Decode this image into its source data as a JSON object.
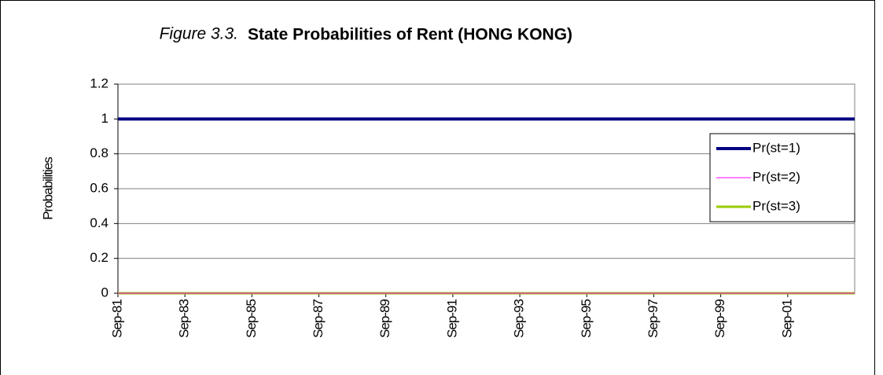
{
  "chart_data": {
    "type": "line",
    "figure_label": "Figure 3.3.",
    "title": "State Probabilities of Rent (HONG KONG)",
    "y_label": "Probabilities",
    "categories": [
      "Sep-81",
      null,
      "Sep-83",
      null,
      "Sep-85",
      null,
      "Sep-87",
      null,
      "Sep-89",
      null,
      "Sep-91",
      null,
      "Sep-93",
      null,
      "Sep-95",
      null,
      "Sep-97",
      null,
      "Sep-99",
      null,
      "Sep-01",
      null,
      null
    ],
    "series": [
      {
        "name": "Pr(st=1)",
        "color": "#000080",
        "width": 4,
        "values": [
          1,
          1,
          1,
          1,
          1,
          1,
          1,
          1,
          1,
          1,
          1,
          1,
          1,
          1,
          1,
          1,
          1,
          1,
          1,
          1,
          1,
          1,
          1
        ]
      },
      {
        "name": "Pr(st=2)",
        "color": "#ff00ff",
        "width": 1,
        "values": [
          0,
          0,
          0,
          0,
          0,
          0,
          0,
          0,
          0,
          0,
          0,
          0,
          0,
          0,
          0,
          0,
          0,
          0,
          0,
          0,
          0,
          0,
          0
        ]
      },
      {
        "name": "Pr(st=3)",
        "color": "#99cc00",
        "width": 3,
        "values": [
          0,
          0,
          0,
          0,
          0,
          0,
          0,
          0,
          0,
          0,
          0,
          0,
          0,
          0,
          0,
          0,
          0,
          0,
          0,
          0,
          0,
          0,
          0
        ]
      }
    ],
    "ylim": [
      0,
      1.2
    ],
    "yticks": [
      0,
      0.2,
      0.4,
      0.6,
      0.8,
      1,
      1.2
    ],
    "grid": true,
    "legend": "right"
  }
}
